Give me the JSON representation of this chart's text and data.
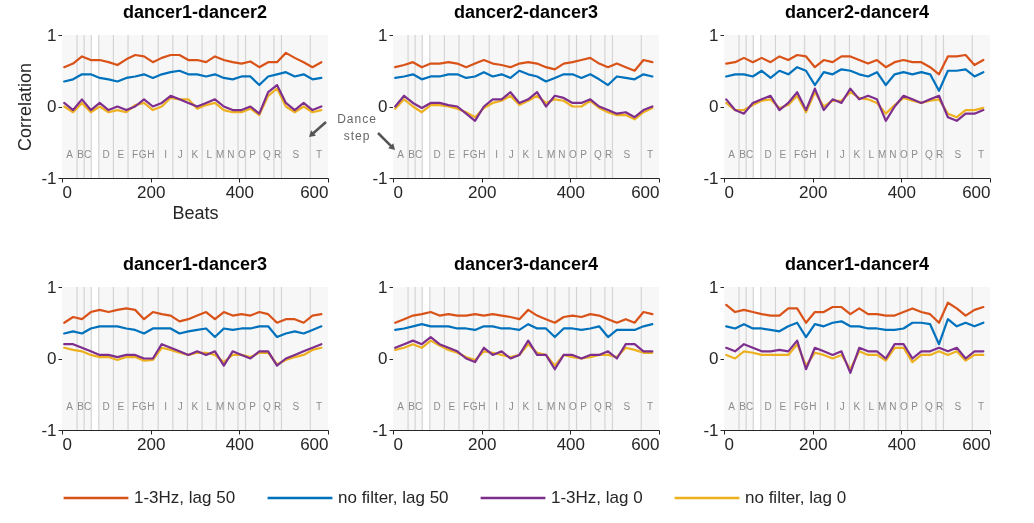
{
  "chart_data": [
    {
      "type": "line",
      "title": "dancer1-dancer2",
      "xlabel": "Beats",
      "ylabel": "Correlation",
      "xlim": [
        0,
        600
      ],
      "ylim": [
        -1,
        1
      ],
      "xticks": [
        0,
        200,
        400,
        600
      ],
      "yticks": [
        -1,
        0,
        1
      ],
      "legend": "bottom",
      "x": [
        5,
        25,
        45,
        65,
        85,
        105,
        125,
        145,
        165,
        185,
        205,
        225,
        245,
        265,
        285,
        305,
        325,
        345,
        365,
        385,
        405,
        425,
        445,
        465,
        485,
        505,
        525,
        545,
        565,
        585
      ],
      "series": [
        {
          "name": "1-3Hz, lag 50",
          "color": "#d95319",
          "values": [
            0.55,
            0.6,
            0.7,
            0.65,
            0.65,
            0.62,
            0.58,
            0.66,
            0.72,
            0.7,
            0.62,
            0.68,
            0.72,
            0.72,
            0.65,
            0.65,
            0.62,
            0.7,
            0.65,
            0.62,
            0.6,
            0.63,
            0.55,
            0.62,
            0.62,
            0.75,
            0.68,
            0.62,
            0.55,
            0.62
          ]
        },
        {
          "name": "no filter, lag 50",
          "color": "#0072bd",
          "values": [
            0.35,
            0.38,
            0.45,
            0.45,
            0.4,
            0.38,
            0.35,
            0.4,
            0.42,
            0.45,
            0.4,
            0.45,
            0.48,
            0.5,
            0.45,
            0.45,
            0.42,
            0.45,
            0.4,
            0.38,
            0.42,
            0.42,
            0.3,
            0.42,
            0.45,
            0.48,
            0.42,
            0.45,
            0.38,
            0.4
          ]
        },
        {
          "name": "1-3Hz, lag 0",
          "color": "#7e2f8e",
          "values": [
            0.05,
            -0.05,
            0.1,
            -0.05,
            0.05,
            -0.05,
            0,
            -0.05,
            0,
            0.1,
            0,
            0.05,
            0.15,
            0.1,
            0.05,
            0,
            0.05,
            0.1,
            0,
            -0.05,
            -0.05,
            0,
            -0.1,
            0.2,
            0.3,
            0.05,
            -0.05,
            0.05,
            -0.05,
            0
          ]
        },
        {
          "name": "no filter, lag 0",
          "color": "#edb120",
          "values": [
            0,
            -0.08,
            0.05,
            -0.08,
            0,
            -0.08,
            -0.05,
            -0.08,
            0.02,
            0.05,
            -0.05,
            0,
            0.12,
            0.1,
            0.1,
            -0.03,
            0.02,
            0.05,
            -0.05,
            -0.08,
            -0.08,
            -0.03,
            -0.12,
            0.15,
            0.25,
            0,
            -0.08,
            0,
            -0.08,
            -0.05
          ]
        }
      ],
      "bands": [
        {
          "axis": "x",
          "from": 0,
          "to": 34,
          "label": "A"
        },
        {
          "axis": "x",
          "from": 34,
          "to": 50,
          "label": "B"
        },
        {
          "axis": "x",
          "from": 50,
          "to": 66,
          "label": "C"
        },
        {
          "axis": "x",
          "from": 83,
          "to": 116,
          "label": "D"
        },
        {
          "axis": "x",
          "from": 116,
          "to": 149,
          "label": "E"
        },
        {
          "axis": "x",
          "from": 149,
          "to": 180,
          "label": "F"
        },
        {
          "axis": "x",
          "from": 180,
          "to": 184,
          "label": "G",
          "color": "#d9d9d9"
        },
        {
          "axis": "x",
          "from": 184,
          "to": 217,
          "label": "H"
        },
        {
          "axis": "x",
          "from": 217,
          "to": 250,
          "label": "I"
        },
        {
          "axis": "x",
          "from": 250,
          "to": 283,
          "label": "J"
        },
        {
          "axis": "x",
          "from": 283,
          "to": 316,
          "label": "K"
        },
        {
          "axis": "x",
          "from": 316,
          "to": 348,
          "label": "L"
        },
        {
          "axis": "x",
          "from": 348,
          "to": 365,
          "label": "M"
        },
        {
          "axis": "x",
          "from": 365,
          "to": 397,
          "label": "N"
        },
        {
          "axis": "x",
          "from": 397,
          "to": 414,
          "label": "O"
        },
        {
          "axis": "x",
          "from": 414,
          "to": 446,
          "label": "P"
        },
        {
          "axis": "x",
          "from": 446,
          "to": 478,
          "label": "Q"
        },
        {
          "axis": "x",
          "from": 478,
          "to": 495,
          "label": "R"
        },
        {
          "axis": "x",
          "from": 495,
          "to": 560,
          "label": "S"
        },
        {
          "axis": "x",
          "from": 560,
          "to": 600,
          "label": "T"
        }
      ],
      "annotations": [
        "Dance step"
      ]
    },
    {
      "type": "line",
      "title": "dancer2-dancer3",
      "xlim": [
        0,
        600
      ],
      "ylim": [
        -1,
        1
      ],
      "xticks": [
        0,
        200,
        400,
        600
      ],
      "yticks": [
        -1,
        0,
        1
      ],
      "legend": "bottom",
      "x": [
        5,
        25,
        45,
        65,
        85,
        105,
        125,
        145,
        165,
        185,
        205,
        225,
        245,
        265,
        285,
        305,
        325,
        345,
        365,
        385,
        405,
        425,
        445,
        465,
        485,
        505,
        525,
        545,
        565,
        585
      ],
      "series": [
        {
          "name": "1-3Hz, lag 50",
          "color": "#d95319",
          "values": [
            0.55,
            0.58,
            0.62,
            0.55,
            0.6,
            0.6,
            0.62,
            0.6,
            0.55,
            0.6,
            0.65,
            0.6,
            0.58,
            0.55,
            0.6,
            0.62,
            0.6,
            0.55,
            0.52,
            0.6,
            0.62,
            0.65,
            0.68,
            0.6,
            0.55,
            0.6,
            0.55,
            0.5,
            0.65,
            0.62
          ]
        },
        {
          "name": "no filter, lag 50",
          "color": "#0072bd",
          "values": [
            0.4,
            0.42,
            0.45,
            0.38,
            0.42,
            0.42,
            0.45,
            0.45,
            0.4,
            0.42,
            0.48,
            0.42,
            0.45,
            0.4,
            0.5,
            0.45,
            0.42,
            0.35,
            0.4,
            0.45,
            0.45,
            0.4,
            0.45,
            0.38,
            0.3,
            0.42,
            0.4,
            0.38,
            0.45,
            0.42
          ]
        },
        {
          "name": "1-3Hz, lag 0",
          "color": "#7e2f8e",
          "values": [
            0,
            0.15,
            0.05,
            -0.02,
            0.05,
            0.05,
            0.02,
            0,
            -0.1,
            -0.2,
            0,
            0.1,
            0.1,
            0.2,
            0.05,
            0.1,
            0.2,
            0,
            0.15,
            0.12,
            0.05,
            0.05,
            0.1,
            0,
            -0.05,
            -0.1,
            -0.08,
            -0.15,
            -0.05,
            0
          ]
        },
        {
          "name": "no filter, lag 0",
          "color": "#edb120",
          "values": [
            -0.03,
            0.1,
            0,
            -0.08,
            0.02,
            0.02,
            0,
            -0.03,
            -0.08,
            -0.15,
            -0.02,
            0.05,
            0.08,
            0.15,
            0.02,
            0.08,
            0.15,
            0.05,
            0.1,
            0.08,
            0,
            0,
            0.08,
            -0.02,
            -0.08,
            -0.12,
            -0.12,
            -0.18,
            -0.08,
            -0.02
          ]
        }
      ],
      "bands": [
        {
          "axis": "x",
          "from": 0,
          "to": 34,
          "label": "A"
        },
        {
          "axis": "x",
          "from": 34,
          "to": 50,
          "label": "B"
        },
        {
          "axis": "x",
          "from": 50,
          "to": 66,
          "label": "C"
        },
        {
          "axis": "x",
          "from": 83,
          "to": 116,
          "label": "D"
        },
        {
          "axis": "x",
          "from": 116,
          "to": 149,
          "label": "E"
        },
        {
          "axis": "x",
          "from": 149,
          "to": 180,
          "label": "F"
        },
        {
          "axis": "x",
          "from": 180,
          "to": 184,
          "label": "G",
          "color": "#d9d9d9"
        },
        {
          "axis": "x",
          "from": 184,
          "to": 217,
          "label": "H"
        },
        {
          "axis": "x",
          "from": 217,
          "to": 250,
          "label": "I"
        },
        {
          "axis": "x",
          "from": 250,
          "to": 283,
          "label": "J"
        },
        {
          "axis": "x",
          "from": 283,
          "to": 316,
          "label": "K"
        },
        {
          "axis": "x",
          "from": 316,
          "to": 348,
          "label": "L"
        },
        {
          "axis": "x",
          "from": 348,
          "to": 365,
          "label": "M"
        },
        {
          "axis": "x",
          "from": 365,
          "to": 397,
          "label": "N"
        },
        {
          "axis": "x",
          "from": 397,
          "to": 414,
          "label": "O"
        },
        {
          "axis": "x",
          "from": 414,
          "to": 446,
          "label": "P"
        },
        {
          "axis": "x",
          "from": 446,
          "to": 478,
          "label": "Q"
        },
        {
          "axis": "x",
          "from": 478,
          "to": 495,
          "label": "R"
        },
        {
          "axis": "x",
          "from": 495,
          "to": 560,
          "label": "S"
        },
        {
          "axis": "x",
          "from": 560,
          "to": 600,
          "label": "T"
        }
      ]
    },
    {
      "type": "line",
      "title": "dancer2-dancer4",
      "xlim": [
        0,
        600
      ],
      "ylim": [
        -1,
        1
      ],
      "xticks": [
        0,
        200,
        400,
        600
      ],
      "yticks": [
        -1,
        0,
        1
      ],
      "legend": "bottom",
      "x": [
        5,
        25,
        45,
        65,
        85,
        105,
        125,
        145,
        165,
        185,
        205,
        225,
        245,
        265,
        285,
        305,
        325,
        345,
        365,
        385,
        405,
        425,
        445,
        465,
        485,
        505,
        525,
        545,
        565,
        585
      ],
      "series": [
        {
          "name": "1-3Hz, lag 50",
          "color": "#d95319",
          "values": [
            0.6,
            0.62,
            0.68,
            0.62,
            0.68,
            0.62,
            0.7,
            0.65,
            0.72,
            0.7,
            0.55,
            0.65,
            0.62,
            0.7,
            0.7,
            0.65,
            0.6,
            0.65,
            0.55,
            0.62,
            0.65,
            0.62,
            0.62,
            0.55,
            0.45,
            0.7,
            0.7,
            0.72,
            0.58,
            0.65
          ]
        },
        {
          "name": "no filter, lag 50",
          "color": "#0072bd",
          "values": [
            0.42,
            0.45,
            0.45,
            0.42,
            0.5,
            0.4,
            0.5,
            0.45,
            0.55,
            0.5,
            0.3,
            0.48,
            0.45,
            0.52,
            0.5,
            0.45,
            0.42,
            0.48,
            0.3,
            0.45,
            0.48,
            0.45,
            0.48,
            0.45,
            0.22,
            0.5,
            0.5,
            0.52,
            0.42,
            0.48
          ]
        },
        {
          "name": "1-3Hz, lag 0",
          "color": "#7e2f8e",
          "values": [
            0.1,
            -0.05,
            -0.1,
            0.05,
            0.1,
            0.15,
            -0.05,
            0.05,
            0.2,
            -0.05,
            0.25,
            -0.05,
            0.1,
            0.05,
            0.25,
            0.1,
            0.15,
            0.1,
            -0.2,
            0,
            0.15,
            0.1,
            0.05,
            0.1,
            0.15,
            -0.15,
            -0.2,
            -0.1,
            -0.1,
            -0.05
          ]
        },
        {
          "name": "no filter, lag 0",
          "color": "#edb120",
          "values": [
            0.05,
            -0.05,
            -0.05,
            0.02,
            0.08,
            0.1,
            -0.02,
            0.02,
            0.15,
            -0.08,
            0.2,
            0,
            0.08,
            0.08,
            0.2,
            0.12,
            0.1,
            0.05,
            -0.1,
            0.02,
            0.12,
            0.08,
            0.05,
            0.08,
            0.1,
            -0.1,
            -0.15,
            -0.05,
            -0.05,
            -0.02
          ]
        }
      ],
      "bands": [
        {
          "axis": "x",
          "from": 0,
          "to": 34,
          "label": "A"
        },
        {
          "axis": "x",
          "from": 34,
          "to": 50,
          "label": "B"
        },
        {
          "axis": "x",
          "from": 50,
          "to": 66,
          "label": "C"
        },
        {
          "axis": "x",
          "from": 83,
          "to": 116,
          "label": "D"
        },
        {
          "axis": "x",
          "from": 116,
          "to": 149,
          "label": "E"
        },
        {
          "axis": "x",
          "from": 149,
          "to": 180,
          "label": "F"
        },
        {
          "axis": "x",
          "from": 180,
          "to": 184,
          "label": "G",
          "color": "#d9d9d9"
        },
        {
          "axis": "x",
          "from": 184,
          "to": 217,
          "label": "H"
        },
        {
          "axis": "x",
          "from": 217,
          "to": 250,
          "label": "I"
        },
        {
          "axis": "x",
          "from": 250,
          "to": 283,
          "label": "J"
        },
        {
          "axis": "x",
          "from": 283,
          "to": 316,
          "label": "K"
        },
        {
          "axis": "x",
          "from": 316,
          "to": 348,
          "label": "L"
        },
        {
          "axis": "x",
          "from": 348,
          "to": 365,
          "label": "M"
        },
        {
          "axis": "x",
          "from": 365,
          "to": 397,
          "label": "N"
        },
        {
          "axis": "x",
          "from": 397,
          "to": 414,
          "label": "O"
        },
        {
          "axis": "x",
          "from": 414,
          "to": 446,
          "label": "P"
        },
        {
          "axis": "x",
          "from": 446,
          "to": 478,
          "label": "Q"
        },
        {
          "axis": "x",
          "from": 478,
          "to": 495,
          "label": "R"
        },
        {
          "axis": "x",
          "from": 495,
          "to": 560,
          "label": "S"
        },
        {
          "axis": "x",
          "from": 560,
          "to": 600,
          "label": "T"
        }
      ]
    },
    {
      "type": "line",
      "title": "dancer1-dancer3",
      "xlim": [
        0,
        600
      ],
      "ylim": [
        -1,
        1
      ],
      "xticks": [
        0,
        200,
        400,
        600
      ],
      "yticks": [
        -1,
        0,
        1
      ],
      "legend": "bottom",
      "x": [
        5,
        25,
        45,
        65,
        85,
        105,
        125,
        145,
        165,
        185,
        205,
        225,
        245,
        265,
        285,
        305,
        325,
        345,
        365,
        385,
        405,
        425,
        445,
        465,
        485,
        505,
        525,
        545,
        565,
        585
      ],
      "series": [
        {
          "name": "1-3Hz, lag 50",
          "color": "#d95319",
          "values": [
            0.5,
            0.58,
            0.55,
            0.65,
            0.68,
            0.65,
            0.68,
            0.7,
            0.68,
            0.55,
            0.65,
            0.62,
            0.6,
            0.52,
            0.55,
            0.6,
            0.65,
            0.55,
            0.65,
            0.6,
            0.62,
            0.6,
            0.65,
            0.62,
            0.5,
            0.55,
            0.55,
            0.5,
            0.6,
            0.62
          ]
        },
        {
          "name": "no filter, lag 50",
          "color": "#0072bd",
          "values": [
            0.35,
            0.38,
            0.35,
            0.42,
            0.45,
            0.45,
            0.45,
            0.42,
            0.4,
            0.35,
            0.42,
            0.42,
            0.42,
            0.35,
            0.38,
            0.4,
            0.42,
            0.3,
            0.42,
            0.4,
            0.42,
            0.42,
            0.45,
            0.45,
            0.3,
            0.35,
            0.38,
            0.35,
            0.4,
            0.45
          ]
        },
        {
          "name": "1-3Hz, lag 0",
          "color": "#7e2f8e",
          "values": [
            0.2,
            0.2,
            0.15,
            0.1,
            0.05,
            0.05,
            0.02,
            0.05,
            0.05,
            0,
            0,
            0.2,
            0.15,
            0.1,
            0.05,
            0.1,
            0.05,
            0.1,
            -0.1,
            0.1,
            0.05,
            0,
            0.1,
            0.1,
            -0.1,
            0,
            0.05,
            0.1,
            0.15,
            0.2
          ]
        },
        {
          "name": "no filter, lag 0",
          "color": "#edb120",
          "values": [
            0.15,
            0.12,
            0.1,
            0.05,
            0.02,
            0.02,
            -0.02,
            0.02,
            0.02,
            -0.03,
            -0.02,
            0.15,
            0.12,
            0.08,
            0.05,
            0.08,
            0.08,
            0.05,
            -0.05,
            0.05,
            0.05,
            0.02,
            0.08,
            0.08,
            -0.08,
            -0.02,
            0.02,
            0.05,
            0.12,
            0.15
          ]
        }
      ],
      "bands": [
        {
          "axis": "x",
          "from": 0,
          "to": 34,
          "label": "A"
        },
        {
          "axis": "x",
          "from": 34,
          "to": 50,
          "label": "B"
        },
        {
          "axis": "x",
          "from": 50,
          "to": 66,
          "label": "C"
        },
        {
          "axis": "x",
          "from": 83,
          "to": 116,
          "label": "D"
        },
        {
          "axis": "x",
          "from": 116,
          "to": 149,
          "label": "E"
        },
        {
          "axis": "x",
          "from": 149,
          "to": 180,
          "label": "F"
        },
        {
          "axis": "x",
          "from": 180,
          "to": 184,
          "label": "G",
          "color": "#d9d9d9"
        },
        {
          "axis": "x",
          "from": 184,
          "to": 217,
          "label": "H"
        },
        {
          "axis": "x",
          "from": 217,
          "to": 250,
          "label": "I"
        },
        {
          "axis": "x",
          "from": 250,
          "to": 283,
          "label": "J"
        },
        {
          "axis": "x",
          "from": 283,
          "to": 316,
          "label": "K"
        },
        {
          "axis": "x",
          "from": 316,
          "to": 348,
          "label": "L"
        },
        {
          "axis": "x",
          "from": 348,
          "to": 365,
          "label": "M"
        },
        {
          "axis": "x",
          "from": 365,
          "to": 397,
          "label": "N"
        },
        {
          "axis": "x",
          "from": 397,
          "to": 414,
          "label": "O"
        },
        {
          "axis": "x",
          "from": 414,
          "to": 446,
          "label": "P"
        },
        {
          "axis": "x",
          "from": 446,
          "to": 478,
          "label": "Q"
        },
        {
          "axis": "x",
          "from": 478,
          "to": 495,
          "label": "R"
        },
        {
          "axis": "x",
          "from": 495,
          "to": 560,
          "label": "S"
        },
        {
          "axis": "x",
          "from": 560,
          "to": 600,
          "label": "T"
        }
      ]
    },
    {
      "type": "line",
      "title": "dancer3-dancer4",
      "xlim": [
        0,
        600
      ],
      "ylim": [
        -1,
        1
      ],
      "xticks": [
        0,
        200,
        400,
        600
      ],
      "yticks": [
        -1,
        0,
        1
      ],
      "legend": "bottom",
      "x": [
        5,
        25,
        45,
        65,
        85,
        105,
        125,
        145,
        165,
        185,
        205,
        225,
        245,
        265,
        285,
        305,
        325,
        345,
        365,
        385,
        405,
        425,
        445,
        465,
        485,
        505,
        525,
        545,
        565,
        585
      ],
      "series": [
        {
          "name": "1-3Hz, lag 50",
          "color": "#d95319",
          "values": [
            0.5,
            0.55,
            0.6,
            0.62,
            0.65,
            0.6,
            0.62,
            0.6,
            0.6,
            0.62,
            0.6,
            0.62,
            0.6,
            0.58,
            0.55,
            0.68,
            0.6,
            0.55,
            0.5,
            0.58,
            0.6,
            0.58,
            0.62,
            0.6,
            0.55,
            0.5,
            0.55,
            0.5,
            0.65,
            0.62
          ]
        },
        {
          "name": "no filter, lag 50",
          "color": "#0072bd",
          "values": [
            0.4,
            0.42,
            0.45,
            0.48,
            0.45,
            0.45,
            0.45,
            0.42,
            0.42,
            0.4,
            0.45,
            0.45,
            0.42,
            0.42,
            0.4,
            0.48,
            0.42,
            0.42,
            0.3,
            0.42,
            0.42,
            0.4,
            0.42,
            0.45,
            0.3,
            0.4,
            0.4,
            0.4,
            0.45,
            0.48
          ]
        },
        {
          "name": "1-3Hz, lag 0",
          "color": "#7e2f8e",
          "values": [
            0.15,
            0.2,
            0.25,
            0.2,
            0.3,
            0.2,
            0.15,
            0.1,
            0,
            -0.05,
            0.15,
            0.05,
            0.1,
            0,
            0.05,
            0.25,
            0.05,
            0.05,
            -0.15,
            0.05,
            0.05,
            0,
            0.05,
            0.05,
            0.1,
            0,
            0.2,
            0.2,
            0.1,
            0.1
          ]
        },
        {
          "name": "no filter, lag 0",
          "color": "#edb120",
          "values": [
            0.12,
            0.15,
            0.2,
            0.15,
            0.25,
            0.18,
            0.12,
            0.08,
            0.02,
            -0.02,
            0.1,
            0.08,
            0.05,
            0.02,
            0.05,
            0.2,
            0.08,
            0.05,
            -0.1,
            0.05,
            0.02,
            0,
            0.02,
            0.05,
            0.05,
            0.02,
            0.15,
            0.12,
            0.08,
            0.08
          ]
        }
      ],
      "bands": [
        {
          "axis": "x",
          "from": 0,
          "to": 34,
          "label": "A"
        },
        {
          "axis": "x",
          "from": 34,
          "to": 50,
          "label": "B"
        },
        {
          "axis": "x",
          "from": 50,
          "to": 66,
          "label": "C"
        },
        {
          "axis": "x",
          "from": 83,
          "to": 116,
          "label": "D"
        },
        {
          "axis": "x",
          "from": 116,
          "to": 149,
          "label": "E"
        },
        {
          "axis": "x",
          "from": 149,
          "to": 180,
          "label": "F"
        },
        {
          "axis": "x",
          "from": 180,
          "to": 184,
          "label": "G",
          "color": "#d9d9d9"
        },
        {
          "axis": "x",
          "from": 184,
          "to": 217,
          "label": "H"
        },
        {
          "axis": "x",
          "from": 217,
          "to": 250,
          "label": "I"
        },
        {
          "axis": "x",
          "from": 250,
          "to": 283,
          "label": "J"
        },
        {
          "axis": "x",
          "from": 283,
          "to": 316,
          "label": "K"
        },
        {
          "axis": "x",
          "from": 316,
          "to": 348,
          "label": "L"
        },
        {
          "axis": "x",
          "from": 348,
          "to": 365,
          "label": "M"
        },
        {
          "axis": "x",
          "from": 365,
          "to": 397,
          "label": "N"
        },
        {
          "axis": "x",
          "from": 397,
          "to": 414,
          "label": "O"
        },
        {
          "axis": "x",
          "from": 414,
          "to": 446,
          "label": "P"
        },
        {
          "axis": "x",
          "from": 446,
          "to": 478,
          "label": "Q"
        },
        {
          "axis": "x",
          "from": 478,
          "to": 495,
          "label": "R"
        },
        {
          "axis": "x",
          "from": 495,
          "to": 560,
          "label": "S"
        },
        {
          "axis": "x",
          "from": 560,
          "to": 600,
          "label": "T"
        }
      ]
    },
    {
      "type": "line",
      "title": "dancer1-dancer4",
      "xlim": [
        0,
        600
      ],
      "ylim": [
        -1,
        1
      ],
      "xticks": [
        0,
        200,
        400,
        600
      ],
      "yticks": [
        -1,
        0,
        1
      ],
      "legend": "bottom",
      "x": [
        5,
        25,
        45,
        65,
        85,
        105,
        125,
        145,
        165,
        185,
        205,
        225,
        245,
        265,
        285,
        305,
        325,
        345,
        365,
        385,
        405,
        425,
        445,
        465,
        485,
        505,
        525,
        545,
        565,
        585
      ],
      "series": [
        {
          "name": "1-3Hz, lag 50",
          "color": "#d95319",
          "values": [
            0.75,
            0.65,
            0.68,
            0.65,
            0.62,
            0.6,
            0.6,
            0.7,
            0.7,
            0.5,
            0.65,
            0.65,
            0.72,
            0.72,
            0.62,
            0.7,
            0.62,
            0.62,
            0.6,
            0.6,
            0.65,
            0.7,
            0.65,
            0.62,
            0.5,
            0.78,
            0.7,
            0.6,
            0.68,
            0.72
          ]
        },
        {
          "name": "no filter, lag 50",
          "color": "#0072bd",
          "values": [
            0.45,
            0.42,
            0.48,
            0.42,
            0.42,
            0.4,
            0.38,
            0.45,
            0.5,
            0.3,
            0.48,
            0.45,
            0.5,
            0.52,
            0.45,
            0.45,
            0.42,
            0.42,
            0.4,
            0.4,
            0.42,
            0.5,
            0.5,
            0.48,
            0.2,
            0.55,
            0.45,
            0.5,
            0.45,
            0.5
          ]
        },
        {
          "name": "1-3Hz, lag 0",
          "color": "#7e2f8e",
          "values": [
            0.15,
            0.1,
            0.2,
            0.15,
            0.1,
            0.1,
            0.12,
            0.1,
            0.25,
            -0.15,
            0.15,
            0.1,
            0.05,
            0.1,
            -0.2,
            0.15,
            0.1,
            0.1,
            0,
            0.2,
            0.2,
            0,
            0.1,
            0.1,
            0.15,
            0.1,
            0.15,
            0,
            0.1,
            0.1
          ]
        },
        {
          "name": "no filter, lag 0",
          "color": "#edb120",
          "values": [
            0.05,
            0,
            0.1,
            0.08,
            0.05,
            0.05,
            0.05,
            0.05,
            0.2,
            -0.1,
            0.08,
            0.05,
            0,
            0.05,
            -0.15,
            0.1,
            0.05,
            0.05,
            -0.03,
            0.15,
            0.15,
            -0.05,
            0.05,
            0.05,
            0.1,
            0.05,
            0.1,
            -0.03,
            0.05,
            0.05
          ]
        }
      ],
      "bands": [
        {
          "axis": "x",
          "from": 0,
          "to": 34,
          "label": "A"
        },
        {
          "axis": "x",
          "from": 34,
          "to": 50,
          "label": "B"
        },
        {
          "axis": "x",
          "from": 50,
          "to": 66,
          "label": "C"
        },
        {
          "axis": "x",
          "from": 83,
          "to": 116,
          "label": "D"
        },
        {
          "axis": "x",
          "from": 116,
          "to": 149,
          "label": "E"
        },
        {
          "axis": "x",
          "from": 149,
          "to": 180,
          "label": "F"
        },
        {
          "axis": "x",
          "from": 180,
          "to": 184,
          "label": "G",
          "color": "#d9d9d9"
        },
        {
          "axis": "x",
          "from": 184,
          "to": 217,
          "label": "H"
        },
        {
          "axis": "x",
          "from": 217,
          "to": 250,
          "label": "I"
        },
        {
          "axis": "x",
          "from": 250,
          "to": 283,
          "label": "J"
        },
        {
          "axis": "x",
          "from": 283,
          "to": 316,
          "label": "K"
        },
        {
          "axis": "x",
          "from": 316,
          "to": 348,
          "label": "L"
        },
        {
          "axis": "x",
          "from": 348,
          "to": 365,
          "label": "M"
        },
        {
          "axis": "x",
          "from": 365,
          "to": 397,
          "label": "N"
        },
        {
          "axis": "x",
          "from": 397,
          "to": 414,
          "label": "O"
        },
        {
          "axis": "x",
          "from": 414,
          "to": 446,
          "label": "P"
        },
        {
          "axis": "x",
          "from": 446,
          "to": 478,
          "label": "Q"
        },
        {
          "axis": "x",
          "from": 478,
          "to": 495,
          "label": "R"
        },
        {
          "axis": "x",
          "from": 495,
          "to": 560,
          "label": "S"
        },
        {
          "axis": "x",
          "from": 560,
          "to": 600,
          "label": "T"
        }
      ]
    }
  ]
}
